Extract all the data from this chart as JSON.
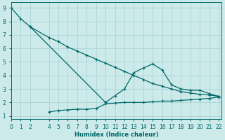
{
  "xlabel": "Humidex (Indice chaleur)",
  "background_color": "#cceaea",
  "grid_color": "#aad4d4",
  "line_color": "#006868",
  "line1_x": [
    0,
    1,
    2,
    10,
    11,
    12,
    13,
    14,
    15,
    16,
    17,
    18,
    19,
    20,
    21,
    22
  ],
  "line1_y": [
    9.0,
    8.2,
    7.6,
    2.0,
    2.5,
    3.0,
    4.2,
    4.55,
    4.85,
    4.4,
    3.3,
    3.0,
    2.9,
    2.9,
    2.65,
    2.45
  ],
  "line2_x": [
    2,
    4,
    5,
    6,
    7,
    8,
    9,
    10,
    11,
    12,
    13,
    14,
    15,
    16,
    17,
    18,
    19,
    20,
    21,
    22
  ],
  "line2_y": [
    7.6,
    6.8,
    6.5,
    6.1,
    5.8,
    5.5,
    5.2,
    4.9,
    4.6,
    4.3,
    4.0,
    3.7,
    3.4,
    3.2,
    3.0,
    2.8,
    2.7,
    2.6,
    2.55,
    2.45
  ],
  "line3_x": [
    4,
    5,
    6,
    7,
    8,
    9,
    10,
    11,
    12,
    13,
    14,
    15,
    16,
    17,
    18,
    19,
    20,
    21,
    22
  ],
  "line3_y": [
    1.3,
    1.4,
    1.45,
    1.5,
    1.5,
    1.55,
    1.9,
    1.95,
    2.0,
    2.0,
    2.0,
    2.05,
    2.1,
    2.1,
    2.15,
    2.2,
    2.25,
    2.3,
    2.4
  ],
  "xlim": [
    0,
    22.3
  ],
  "ylim": [
    0.8,
    9.4
  ],
  "xticks": [
    0,
    1,
    2,
    4,
    5,
    6,
    7,
    8,
    9,
    10,
    11,
    12,
    13,
    14,
    15,
    16,
    17,
    18,
    19,
    20,
    21,
    22
  ],
  "yticks": [
    1,
    2,
    3,
    4,
    5,
    6,
    7,
    8,
    9
  ]
}
